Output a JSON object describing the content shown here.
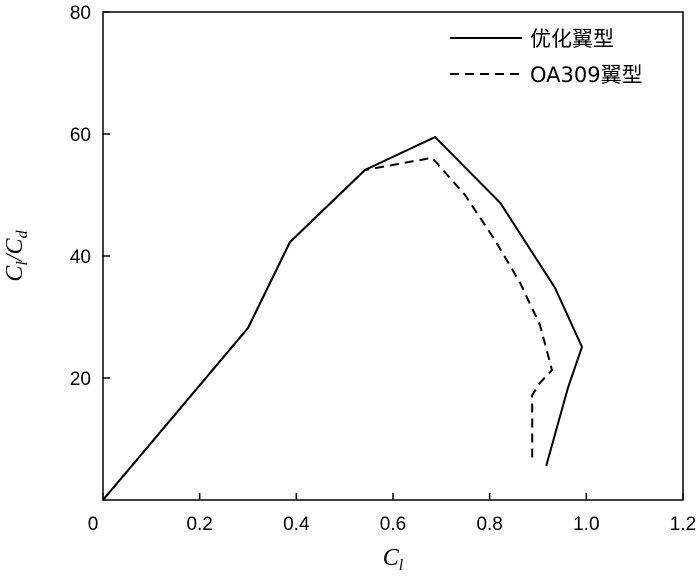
{
  "chart_data": {
    "type": "line",
    "x_label": [
      "C",
      "l"
    ],
    "y_label": [
      "C",
      "l",
      "/C",
      "d"
    ],
    "xlim": [
      0,
      1.2
    ],
    "ylim": [
      0,
      80
    ],
    "xticks": [
      0,
      0.2,
      0.4,
      0.6,
      0.8,
      {
        "value": 1.0,
        "label": "1.0"
      },
      1.2
    ],
    "yticks": [
      20,
      40,
      60,
      80
    ],
    "legend": "upper right",
    "series": [
      {
        "name": "优化翼型",
        "color": "#000000",
        "dash": "solid",
        "x": [
          0,
          0.3,
          0.387,
          0.542,
          0.687,
          0.822,
          0.935,
          0.991,
          0.962,
          0.917
        ],
        "values": [
          0,
          28.2,
          42.3,
          54.1,
          59.5,
          48.7,
          34.8,
          25.1,
          18.4,
          5.6
        ]
      },
      {
        "name": "OA309翼型",
        "color": "#000000",
        "dash": "dashed",
        "x": [
          0,
          0.3,
          0.387,
          0.542,
          0.681,
          0.749,
          0.811,
          0.863,
          0.904,
          0.929,
          0.904,
          0.888,
          0.888
        ],
        "values": [
          0,
          28.2,
          42.3,
          54.1,
          56.1,
          50.0,
          42.6,
          35.6,
          28.7,
          21.3,
          19.2,
          17.2,
          6.6
        ]
      }
    ]
  }
}
